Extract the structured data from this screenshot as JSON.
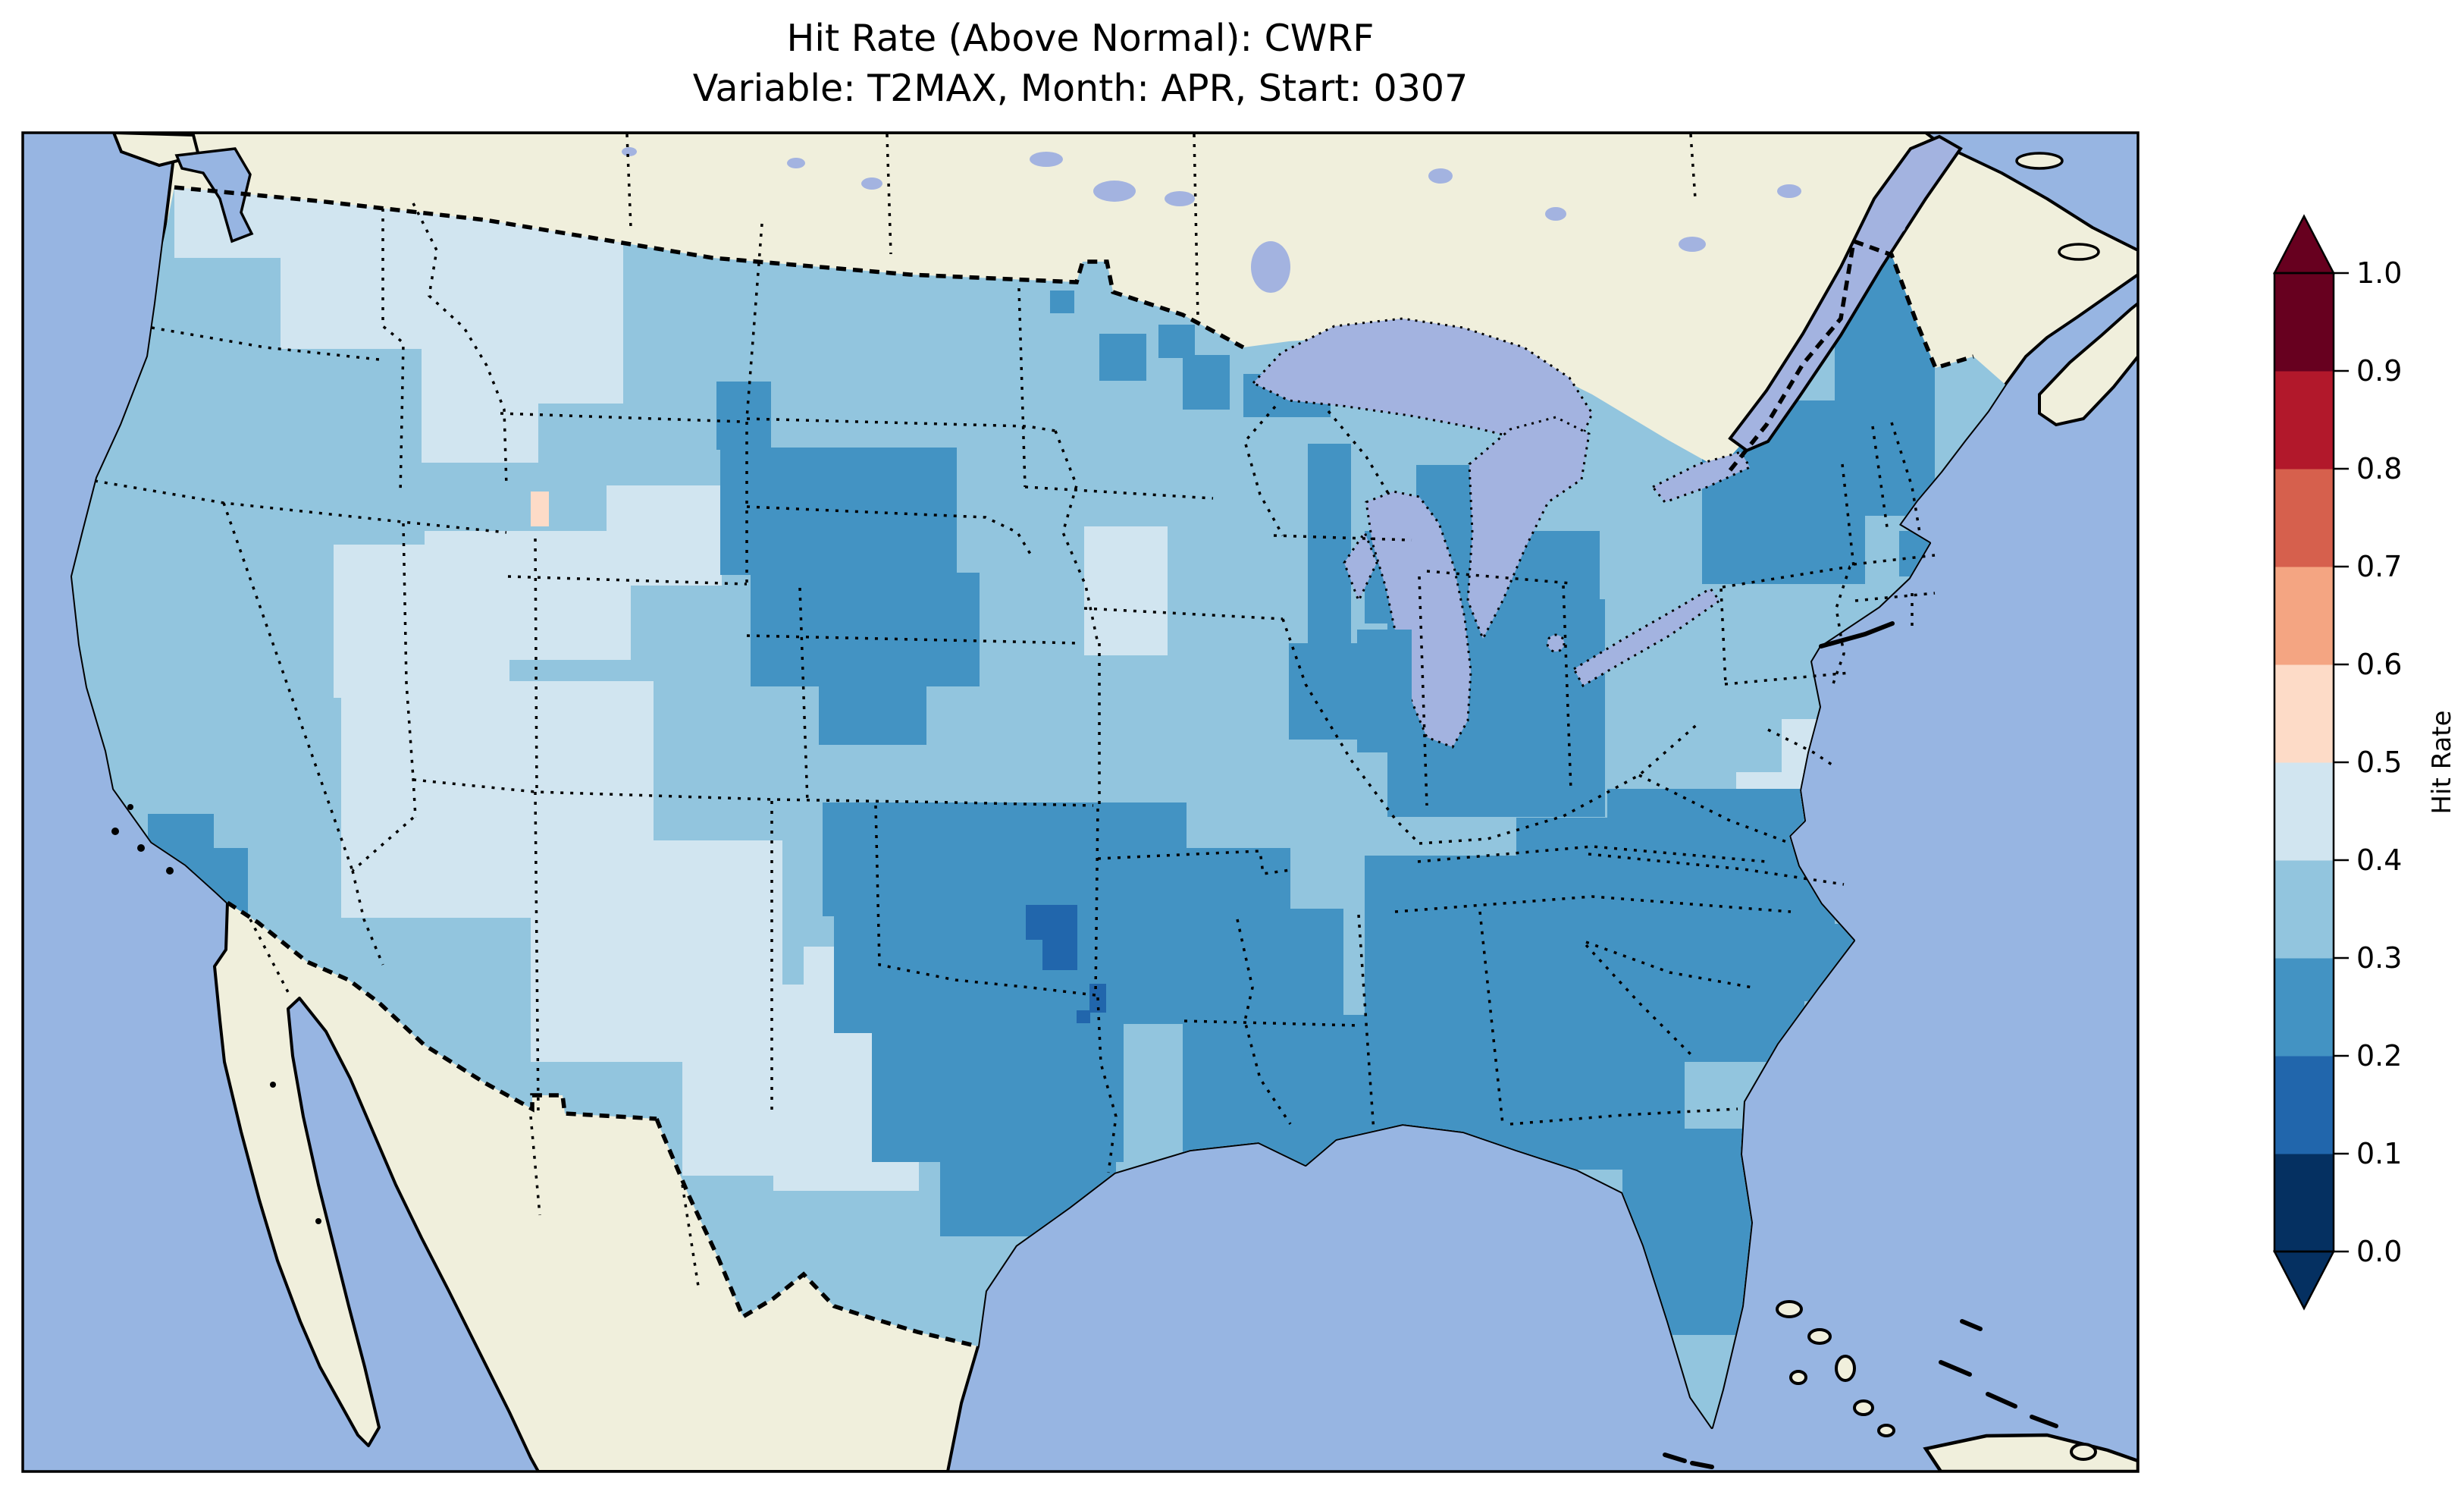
{
  "title": {
    "line1": "Hit Rate (Above Normal): CWRF",
    "line2": "Variable: T2MAX, Month: APR, Start: 0307"
  },
  "colorbar": {
    "label": "Hit Rate",
    "ticks": [
      "1.0",
      "0.9",
      "0.8",
      "0.7",
      "0.6",
      "0.5",
      "0.4",
      "0.3",
      "0.2",
      "0.1",
      "0.0"
    ],
    "bins": [
      {
        "range": "0.0-0.1",
        "color": "#053061"
      },
      {
        "range": "0.1-0.2",
        "color": "#2166ac"
      },
      {
        "range": "0.2-0.3",
        "color": "#4393c3"
      },
      {
        "range": "0.3-0.4",
        "color": "#92c5de"
      },
      {
        "range": "0.4-0.5",
        "color": "#d1e5f0"
      },
      {
        "range": "0.5-0.6",
        "color": "#fddbc7"
      },
      {
        "range": "0.6-0.7",
        "color": "#f4a582"
      },
      {
        "range": "0.7-0.8",
        "color": "#d6604d"
      },
      {
        "range": "0.8-0.9",
        "color": "#b2182b"
      },
      {
        "range": "0.9-1.0",
        "color": "#67001f"
      }
    ],
    "over_color": "#67001f",
    "under_color": "#053061"
  },
  "map": {
    "background": {
      "ocean": "#97b5e2",
      "land": "#f0efdc",
      "lake": "#a3b3e0"
    },
    "palette": {
      "b01": "#2166ac",
      "b02": "#4393c3",
      "b03": "#92c5de",
      "b04": "#d1e5f0",
      "b05": "#fddbc7"
    },
    "patches": [
      [
        230,
        196,
        300,
        144,
        "b04"
      ],
      [
        370,
        230,
        340,
        230,
        "b04"
      ],
      [
        556,
        450,
        154,
        160,
        "b04"
      ],
      [
        690,
        300,
        132,
        232,
        "b04"
      ],
      [
        800,
        640,
        152,
        132,
        "b04"
      ],
      [
        440,
        718,
        232,
        202,
        "b04"
      ],
      [
        560,
        700,
        272,
        170,
        "b04"
      ],
      [
        450,
        898,
        412,
        312,
        "b04"
      ],
      [
        700,
        1108,
        332,
        292,
        "b04"
      ],
      [
        860,
        1198,
        172,
        182,
        "b04"
      ],
      [
        900,
        1298,
        292,
        252,
        "b04"
      ],
      [
        1020,
        1398,
        192,
        172,
        "b04"
      ],
      [
        1060,
        1248,
        122,
        162,
        "b04"
      ],
      [
        920,
        1148,
        92,
        112,
        "b04"
      ],
      [
        1430,
        694,
        110,
        170,
        "b04"
      ],
      [
        1445,
        760,
        90,
        100,
        "b04"
      ],
      [
        2290,
        1018,
        102,
        102,
        "b04"
      ],
      [
        2350,
        948,
        72,
        82,
        "b04"
      ],
      [
        945,
        503,
        72,
        90,
        "b02"
      ],
      [
        950,
        590,
        312,
        168,
        "b02"
      ],
      [
        990,
        755,
        302,
        150,
        "b02"
      ],
      [
        1080,
        890,
        142,
        92,
        "b02"
      ],
      [
        195,
        1073,
        87,
        87,
        "b02"
      ],
      [
        240,
        1118,
        87,
        97,
        "b02"
      ],
      [
        280,
        1183,
        46,
        72,
        "b02"
      ],
      [
        1085,
        1058,
        480,
        150,
        "b02"
      ],
      [
        1100,
        1200,
        352,
        162,
        "b02"
      ],
      [
        1150,
        1350,
        332,
        182,
        "b02"
      ],
      [
        1240,
        1508,
        232,
        122,
        "b02"
      ],
      [
        1480,
        1118,
        222,
        122,
        "b02"
      ],
      [
        1450,
        1198,
        322,
        152,
        "b02"
      ],
      [
        1560,
        1338,
        282,
        212,
        "b02"
      ],
      [
        1700,
        1418,
        502,
        112,
        "b02"
      ],
      [
        1950,
        1458,
        252,
        84,
        "b02"
      ],
      [
        1800,
        1128,
        332,
        132,
        "b02"
      ],
      [
        1800,
        1248,
        422,
        282,
        "b02"
      ],
      [
        2080,
        1228,
        300,
        172,
        "b02"
      ],
      [
        2120,
        1040,
        300,
        190,
        "b02"
      ],
      [
        2300,
        1218,
        152,
        102,
        "b02"
      ],
      [
        2140,
        1488,
        182,
        272,
        "b02"
      ],
      [
        1450,
        440,
        62,
        62,
        "b02"
      ],
      [
        1560,
        468,
        62,
        72,
        "b02"
      ],
      [
        1385,
        383,
        32,
        30,
        "b02"
      ],
      [
        1528,
        428,
        48,
        44,
        "b02"
      ],
      [
        1640,
        493,
        115,
        57,
        "b02"
      ],
      [
        1700,
        463,
        58,
        58,
        "b02"
      ],
      [
        1725,
        585,
        57,
        265,
        "b02"
      ],
      [
        1700,
        848,
        107,
        127,
        "b02"
      ],
      [
        1845,
        700,
        62,
        145,
        "b02"
      ],
      [
        1868,
        613,
        88,
        107,
        "b02"
      ],
      [
        1800,
        700,
        310,
        122,
        "b02"
      ],
      [
        1830,
        790,
        287,
        287,
        "b02"
      ],
      [
        2000,
        1078,
        252,
        122,
        "b02"
      ],
      [
        2245,
        528,
        215,
        242,
        "b02"
      ],
      [
        2420,
        328,
        132,
        352,
        "b02"
      ],
      [
        2250,
        658,
        132,
        102,
        "b02"
      ],
      [
        2505,
        700,
        56,
        60,
        "b02"
      ],
      [
        1353,
        1193,
        68,
        46,
        "b01"
      ],
      [
        1375,
        1239,
        46,
        40,
        "b01"
      ],
      [
        1437,
        1297,
        22,
        38,
        "b01"
      ],
      [
        1420,
        1332,
        18,
        17,
        "b01"
      ],
      [
        700,
        648,
        24,
        46,
        "b05"
      ]
    ],
    "overlay_patches": [
      [
        1790,
        830,
        72,
        162,
        "b02"
      ]
    ]
  },
  "chart_data": {
    "type": "heatmap",
    "title": "Hit Rate (Above Normal): CWRF",
    "subtitle": "Variable: T2MAX, Month: APR, Start: 0307",
    "model": "CWRF",
    "variable": "T2MAX",
    "month": "APR",
    "start": "0307",
    "metric": "Hit Rate (Above Normal)",
    "colorbar_label": "Hit Rate",
    "scale_ticks": [
      0.0,
      0.1,
      0.2,
      0.3,
      0.4,
      0.5,
      0.6,
      0.7,
      0.8,
      0.9,
      1.0
    ],
    "scale_range": [
      0.0,
      1.0
    ],
    "colormap": "RdBu reversed, 10 discrete bins, extended arrows both ends",
    "geographic_extent": "Continental United States (CONUS) with surrounding Canada, Mexico, Atlantic and Pacific",
    "observed_value_range": "approximately 0.1 to 0.6; most of CONUS between 0.2 and 0.5",
    "regions": [
      {
        "region": "Washington / northern Idaho / NW Montana",
        "hit_rate": "0.4-0.5"
      },
      {
        "region": "Oregon and northern California",
        "hit_rate": "0.3-0.4"
      },
      {
        "region": "Southern California coast",
        "hit_rate": "0.2-0.3"
      },
      {
        "region": "Great Basin / Southwest (Utah, Arizona, New Mexico, west Texas)",
        "hit_rate": "0.4-0.5"
      },
      {
        "region": "Idaho-Montana border cell",
        "hit_rate": "0.5-0.6 (isolated warm-color cell)"
      },
      {
        "region": "Eastern Wyoming / NE Colorado / W Nebraska block",
        "hit_rate": "0.2-0.3"
      },
      {
        "region": "Dakotas and central plains",
        "hit_rate": "0.3-0.4"
      },
      {
        "region": "SE Minnesota / SW Wisconsin / NE Iowa pocket",
        "hit_rate": "0.4-0.5"
      },
      {
        "region": "Kansas / Oklahoma / north Texas",
        "hit_rate": "0.2-0.3"
      },
      {
        "region": "Southeast Oklahoma cells",
        "hit_rate": "0.1-0.2 (map minimum)"
      },
      {
        "region": "Lower Michigan, Illinois, Indiana, Ohio",
        "hit_rate": "0.2-0.3"
      },
      {
        "region": "South and Southeast (AR, LA, MS, AL, TN, GA, Carolinas, north Florida)",
        "hit_rate": "0.2-0.3"
      },
      {
        "region": "South Florida tip",
        "hit_rate": "0.3-0.4"
      },
      {
        "region": "Northern New England (Maine, NH, VT) and Adirondacks",
        "hit_rate": "0.2-0.3"
      },
      {
        "region": "Southern New England / Mid-Atlantic",
        "hit_rate": "0.3-0.4 with 0.4-0.5 pockets"
      }
    ]
  }
}
